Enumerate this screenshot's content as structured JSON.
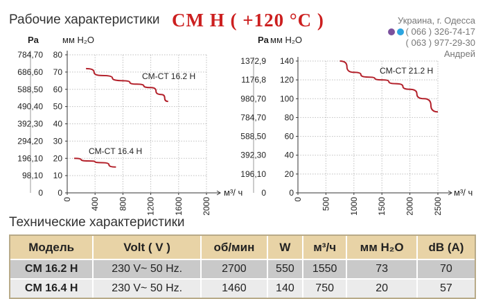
{
  "header": {
    "title": "Рабочие характеристики",
    "series_title": "CM  H  ( +120 °C )",
    "contact_city": "Украина, г. Одесса",
    "phone1": "( 066 ) 326-74-17",
    "phone2": "( 063 ) 977-29-30",
    "contact_name": "Андрей",
    "icons": [
      "viber-icon",
      "telegram-icon"
    ]
  },
  "tech_title": "Технические характеристики",
  "table": {
    "columns": [
      "Модель",
      "Volt ( V )",
      "об/мин",
      "W",
      "м³/ч",
      "мм H₂O",
      "dB (A)"
    ],
    "rows": [
      [
        "CM 16.2 H",
        "230 V~ 50 Hz.",
        "2700",
        "550",
        "1550",
        "73",
        "70"
      ],
      [
        "CM 16.4 H",
        "230 V~ 50 Hz.",
        "1460",
        "140",
        "750",
        "20",
        "57"
      ]
    ]
  },
  "colors": {
    "curve": "#b3202a",
    "title_red": "#cc1f1f",
    "table_header": "#e8d3a6"
  },
  "chart_data": [
    {
      "type": "line",
      "left_unit": "Pa",
      "ylabel": "мм H₂O",
      "xlabel": "м³/ ч",
      "pa_ticks": [
        "784,70",
        "686,60",
        "588,50",
        "490,40",
        "392,30",
        "294,20",
        "196,10",
        "98,10",
        "0"
      ],
      "y_ticks": [
        80,
        70,
        60,
        50,
        40,
        30,
        20,
        10,
        0
      ],
      "x_ticks": [
        0,
        400,
        800,
        1200,
        1600,
        2000
      ],
      "xlim": [
        0,
        2000
      ],
      "ylim": [
        0,
        80
      ],
      "series": [
        {
          "name": "CM-CT 16.2 H",
          "x": [
            270,
            500,
            800,
            1000,
            1200,
            1350,
            1450
          ],
          "y": [
            72,
            68,
            65,
            63,
            61,
            57,
            53
          ]
        },
        {
          "name": "CM-CT 16.4 H",
          "x": [
            100,
            300,
            500,
            700
          ],
          "y": [
            20,
            18.5,
            17.5,
            15
          ]
        }
      ]
    },
    {
      "type": "line",
      "left_unit": "Pa",
      "ylabel": "мм H₂O",
      "xlabel": "м³/ ч",
      "pa_ticks": [
        "1372,9",
        "1176,8",
        "980,70",
        "784,70",
        "588,50",
        "392,30",
        "196,10",
        "0"
      ],
      "y_ticks": [
        140,
        120,
        100,
        80,
        60,
        40,
        20,
        0
      ],
      "x_ticks": [
        0,
        500,
        1000,
        1500,
        2000,
        2500
      ],
      "xlim": [
        0,
        2500
      ],
      "ylim": [
        0,
        140
      ],
      "series": [
        {
          "name": "CM-CT 21.2 H",
          "x": [
            750,
            1000,
            1250,
            1500,
            1750,
            2000,
            2250,
            2500
          ],
          "y": [
            140,
            128,
            123,
            120,
            116,
            110,
            100,
            86
          ]
        }
      ]
    }
  ]
}
